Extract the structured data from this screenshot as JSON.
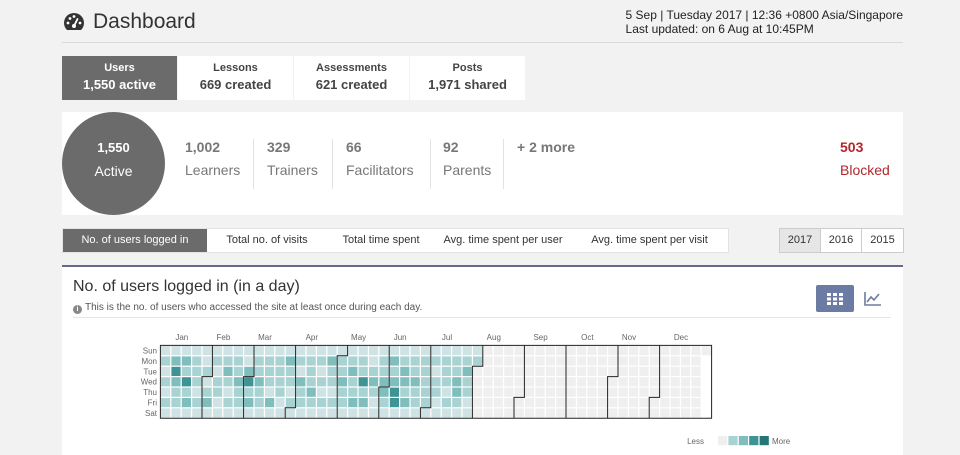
{
  "header": {
    "title": "Dashboard",
    "datetime": "5 Sep | Tuesday 2017 | 12:36 +0800 Asia/Singapore",
    "last_updated": "Last updated: on 6 Aug at 10:45PM"
  },
  "stat_tabs": [
    {
      "label": "Users",
      "value": "1,550 active"
    },
    {
      "label": "Lessons",
      "value": "669 created"
    },
    {
      "label": "Assessments",
      "value": "621 created"
    },
    {
      "label": "Posts",
      "value": "1,971 shared"
    }
  ],
  "summary": {
    "active_count": "1,550",
    "active_label": "Active",
    "roles": [
      {
        "count": "1,002",
        "label": "Learners"
      },
      {
        "count": "329",
        "label": "Trainers"
      },
      {
        "count": "66",
        "label": "Facilitators"
      },
      {
        "count": "92",
        "label": "Parents"
      },
      {
        "count": "+ 2 more",
        "label": ""
      }
    ],
    "blocked_count": "503",
    "blocked_label": "Blocked"
  },
  "metric_tabs": [
    "No. of users logged in",
    "Total no. of visits",
    "Total time spent",
    "Avg. time spent per user",
    "Avg. time spent per visit"
  ],
  "year_tabs": [
    "2017",
    "2016",
    "2015"
  ],
  "panel": {
    "title": "No. of users logged in (in a day)",
    "subtitle": "This is the no. of users who accessed the site at least once during each day.",
    "grid_view_icon": "grid-icon",
    "line_view_icon": "line-chart-icon"
  },
  "heatmap": {
    "months": [
      "Jan",
      "Feb",
      "Mar",
      "Apr",
      "May",
      "Jun",
      "Jul",
      "Aug",
      "Sep",
      "Oct",
      "Nov",
      "Dec"
    ],
    "days": [
      "Sun",
      "Mon",
      "Tue",
      "Wed",
      "Thu",
      "Fri",
      "Sat"
    ],
    "legend_less": "Less",
    "legend_more": "More",
    "colors": [
      "#efefef",
      "#cfe3e4",
      "#a9d3d3",
      "#7fbebd",
      "#3e9494",
      "#237777"
    ],
    "weekly_levels": [
      [
        0,
        2,
        1,
        2,
        1,
        2,
        1
      ],
      [
        1,
        3,
        4,
        3,
        2,
        2,
        1
      ],
      [
        1,
        3,
        2,
        4,
        2,
        3,
        1
      ],
      [
        1,
        2,
        2,
        2,
        1,
        2,
        1
      ],
      [
        0,
        1,
        2,
        1,
        2,
        3,
        1
      ],
      [
        1,
        2,
        1,
        2,
        2,
        1,
        1
      ],
      [
        1,
        2,
        3,
        2,
        1,
        2,
        1
      ],
      [
        1,
        2,
        2,
        3,
        2,
        2,
        0
      ],
      [
        1,
        1,
        3,
        4,
        2,
        3,
        1
      ],
      [
        1,
        2,
        2,
        3,
        2,
        2,
        1
      ],
      [
        1,
        2,
        2,
        2,
        1,
        3,
        1
      ],
      [
        1,
        2,
        2,
        2,
        2,
        1,
        1
      ],
      [
        1,
        3,
        2,
        2,
        1,
        2,
        1
      ],
      [
        1,
        2,
        1,
        3,
        2,
        2,
        1
      ],
      [
        1,
        2,
        2,
        2,
        3,
        2,
        1
      ],
      [
        0,
        2,
        1,
        2,
        1,
        2,
        1
      ],
      [
        1,
        3,
        2,
        2,
        1,
        2,
        1
      ],
      [
        1,
        2,
        2,
        3,
        2,
        2,
        0
      ],
      [
        1,
        2,
        3,
        2,
        2,
        3,
        1
      ],
      [
        1,
        2,
        2,
        4,
        2,
        3,
        1
      ],
      [
        1,
        1,
        2,
        3,
        2,
        1,
        1
      ],
      [
        1,
        2,
        2,
        3,
        3,
        2,
        1
      ],
      [
        1,
        3,
        2,
        3,
        4,
        4,
        1
      ],
      [
        1,
        2,
        3,
        3,
        2,
        3,
        1
      ],
      [
        1,
        2,
        2,
        3,
        2,
        2,
        1
      ],
      [
        1,
        2,
        2,
        2,
        2,
        2,
        1
      ],
      [
        1,
        2,
        1,
        2,
        2,
        1,
        1
      ],
      [
        1,
        2,
        2,
        2,
        1,
        2,
        1
      ],
      [
        1,
        2,
        2,
        3,
        3,
        2,
        1
      ],
      [
        1,
        2,
        3,
        2,
        2,
        1,
        1
      ],
      [
        1,
        2,
        2,
        2,
        2,
        2,
        1
      ],
      [
        0,
        1,
        1,
        1,
        1,
        1,
        1
      ]
    ]
  }
}
